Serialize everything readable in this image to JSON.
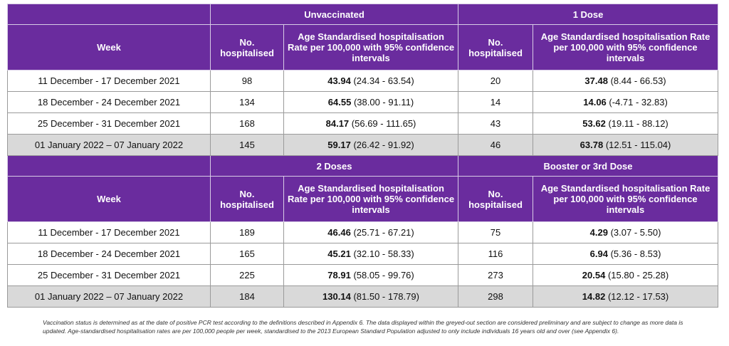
{
  "column_headers": {
    "week": "Week",
    "count": "No. hospitalised",
    "rate": "Age Standardised hospitalisation Rate per 100,000 with 95% confidence intervals"
  },
  "blocks": [
    {
      "groups": [
        "Unvaccinated",
        "1 Dose"
      ],
      "rows": [
        {
          "week": "11 December - 17 December 2021",
          "cells": [
            {
              "count": "98",
              "rate": "43.94",
              "ci": "(24.34 - 63.54)"
            },
            {
              "count": "20",
              "rate": "37.48",
              "ci": "(8.44 - 66.53)"
            }
          ]
        },
        {
          "week": "18 December - 24 December 2021",
          "cells": [
            {
              "count": "134",
              "rate": "64.55",
              "ci": "(38.00 - 91.11)"
            },
            {
              "count": "14",
              "rate": "14.06",
              "ci": "(-4.71 - 32.83)"
            }
          ]
        },
        {
          "week": "25 December - 31 December 2021",
          "cells": [
            {
              "count": "168",
              "rate": "84.17",
              "ci": "(56.69 - 111.65)"
            },
            {
              "count": "43",
              "rate": "53.62",
              "ci": "(19.11 - 88.12)"
            }
          ]
        },
        {
          "week": "01 January 2022 – 07 January 2022",
          "cells": [
            {
              "count": "145",
              "rate": "59.17",
              "ci": "(26.42 - 91.92)"
            },
            {
              "count": "46",
              "rate": "63.78",
              "ci": "(12.51 - 115.04)"
            }
          ]
        }
      ]
    },
    {
      "groups": [
        "2 Doses",
        "Booster or 3rd Dose"
      ],
      "rows": [
        {
          "week": "11 December - 17 December 2021",
          "cells": [
            {
              "count": "189",
              "rate": "46.46",
              "ci": "(25.71 - 67.21)"
            },
            {
              "count": "75",
              "rate": "4.29",
              "ci": "(3.07 - 5.50)"
            }
          ]
        },
        {
          "week": "18 December - 24 December 2021",
          "cells": [
            {
              "count": "165",
              "rate": "45.21",
              "ci": "(32.10 - 58.33)"
            },
            {
              "count": "116",
              "rate": "6.94",
              "ci": "(5.36 - 8.53)"
            }
          ]
        },
        {
          "week": "25 December - 31 December 2021",
          "cells": [
            {
              "count": "225",
              "rate": "78.91",
              "ci": "(58.05 - 99.76)"
            },
            {
              "count": "273",
              "rate": "20.54",
              "ci": "(15.80 - 25.28)"
            }
          ]
        },
        {
          "week": "01 January 2022 – 07 January 2022",
          "cells": [
            {
              "count": "184",
              "rate": "130.14",
              "ci": "(81.50 - 178.79)"
            },
            {
              "count": "298",
              "rate": "14.82",
              "ci": "(12.12 - 17.53)"
            }
          ]
        }
      ]
    }
  ],
  "footnote": "Vaccination status is determined as at the date of positive PCR test according to the definitions described in Appendix 6. The data displayed within the greyed-out section are considered preliminary and are subject to change as more data is updated. Age-standardised hospitalisation rates are per 100,000 people per week, standardised to the 2013 European Standard Population adjusted to only include individuals 16 years old and over (see Appendix 6)."
}
